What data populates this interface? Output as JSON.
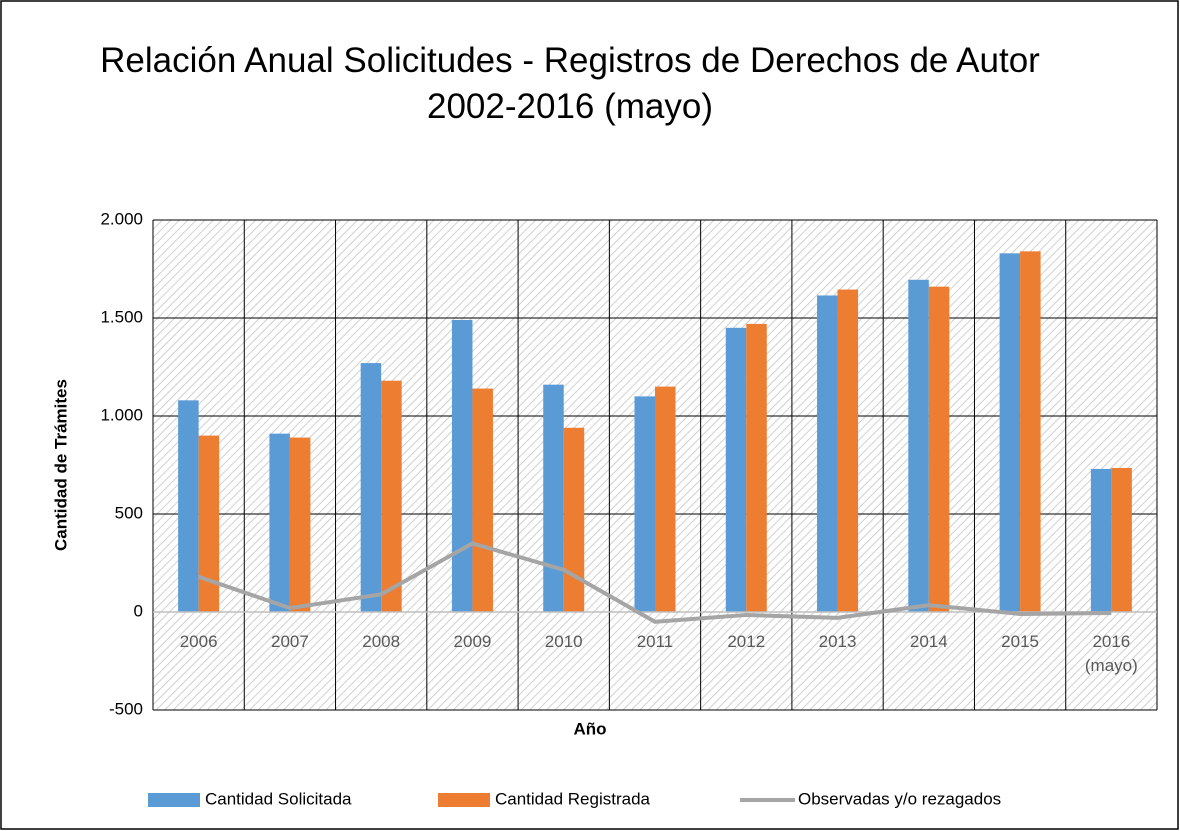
{
  "chart_data": {
    "type": "bar",
    "title": "Relación Anual Solicitudes - Registros de Derechos de Autor 2002-2016 (mayo)",
    "y_label": "Cantidad de Trámites",
    "x_label": "Año",
    "categories": [
      "2006",
      "2007",
      "2008",
      "2009",
      "2010",
      "2011",
      "2012",
      "2013",
      "2014",
      "2015",
      "2016 (mayo)"
    ],
    "series": [
      {
        "name": "Cantidad Solicitada",
        "color": "#5b9bd5",
        "type": "bar",
        "values": [
          1080,
          910,
          1270,
          1490,
          1160,
          1100,
          1450,
          1615,
          1695,
          1830,
          730
        ]
      },
      {
        "name": "Cantidad Registrada",
        "color": "#ed7d31",
        "type": "bar",
        "values": [
          900,
          890,
          1180,
          1140,
          940,
          1150,
          1470,
          1645,
          1660,
          1840,
          735
        ]
      },
      {
        "name": "Observadas y/o rezagados",
        "color": "#a5a5a5",
        "type": "line",
        "values": [
          180,
          20,
          90,
          350,
          215,
          -50,
          -15,
          -30,
          35,
          -10,
          -5
        ]
      }
    ],
    "ylim": [
      -500,
      2000
    ],
    "yticks": [
      -500,
      0,
      500,
      {
        "value": 1000,
        "label": "1.000"
      },
      {
        "value": 1500,
        "label": "1.500"
      },
      {
        "value": 2000,
        "label": "2.000"
      }
    ],
    "grid": true,
    "legend": "bottom"
  }
}
